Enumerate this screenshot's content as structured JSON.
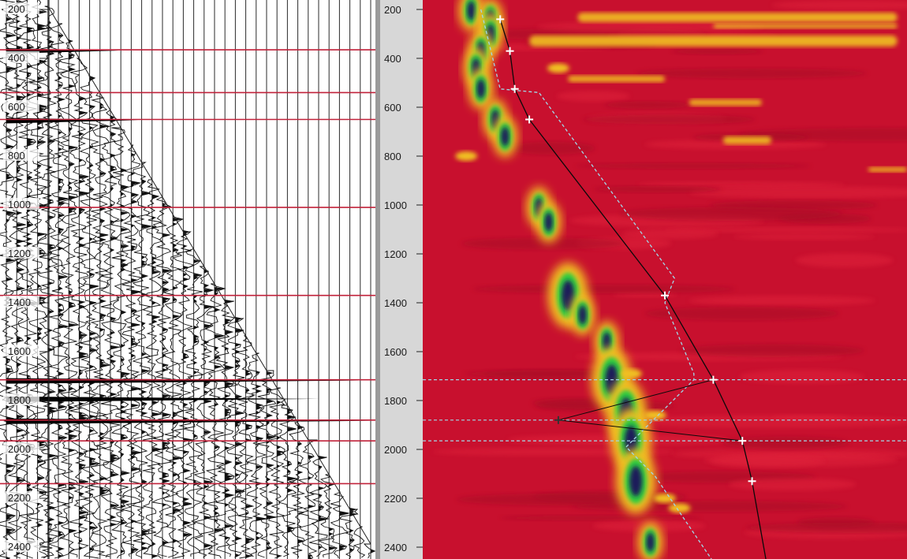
{
  "chart_data": [
    {
      "panel": "seismic-traces",
      "type": "line",
      "y_ticks": [
        "200",
        "400",
        "600",
        "800",
        "1000",
        "1200",
        "1400",
        "1600",
        "1800",
        "2000",
        "2200",
        "2400"
      ],
      "y_values": [
        200,
        400,
        600,
        800,
        1000,
        1200,
        1400,
        1600,
        1800,
        2000,
        2200,
        2400
      ],
      "ylim": [
        180,
        2460
      ],
      "y_inverted": true,
      "horizon_depths": [
        365,
        540,
        650,
        1010,
        1370,
        1715,
        1880,
        1965,
        2140
      ],
      "colors": {
        "traces": "#111111",
        "horizons": "#c0223a",
        "grid": "#2b2b2b"
      }
    },
    {
      "panel": "velocity-semblance",
      "type": "heatmap",
      "y_ticks": [
        "200",
        "400",
        "600",
        "800",
        "1000",
        "1200",
        "1400",
        "1600",
        "1800",
        "2000",
        "2200",
        "2400"
      ],
      "y_values": [
        200,
        400,
        600,
        800,
        1000,
        1200,
        1400,
        1600,
        1800,
        2000,
        2200,
        2400
      ],
      "ylim": [
        180,
        2460
      ],
      "y_inverted": true,
      "picks": [
        {
          "y": 240,
          "x": 0.16
        },
        {
          "y": 370,
          "x": 0.18
        },
        {
          "y": 525,
          "x": 0.19
        },
        {
          "y": 650,
          "x": 0.22
        },
        {
          "y": 1370,
          "x": 0.5
        },
        {
          "y": 1715,
          "x": 0.6
        },
        {
          "y": 1965,
          "x": 0.66
        },
        {
          "y": 2130,
          "x": 0.68
        }
      ],
      "outlier_pick": {
        "y": 1880,
        "x": 0.28
      },
      "colors": {
        "background": "#c8102e",
        "low": "#a80f26",
        "mid": "#f0c020",
        "high": "#2ecc40",
        "peak": "#1a1a5a",
        "pick_line": "#0a0a0a",
        "bound_line": "#9fd8e8"
      }
    }
  ]
}
